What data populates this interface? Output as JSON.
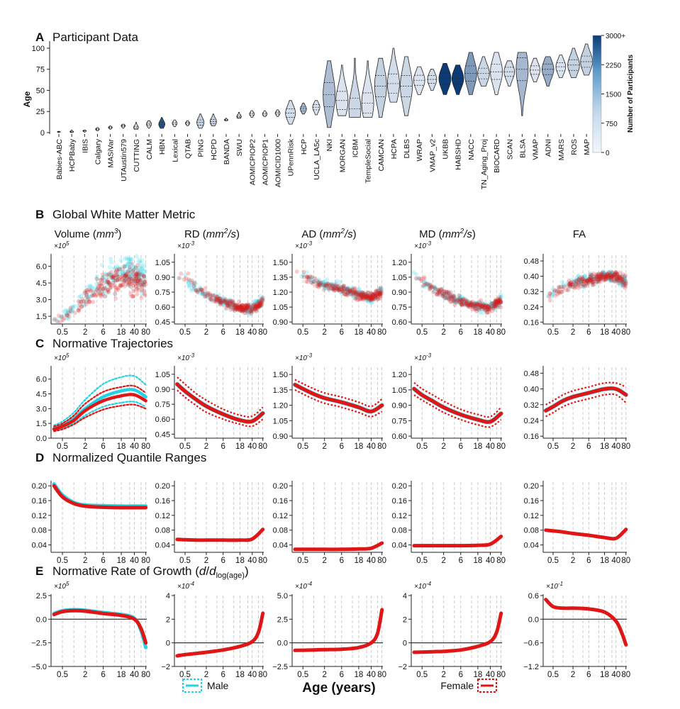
{
  "colors": {
    "male": "#22d3e6",
    "female": "#e01515",
    "axis": "#222222",
    "grid": "#bfbfbf",
    "cbar_low": "#f2f6fb",
    "cbar_high": "#0b3c78"
  },
  "panel_a": {
    "letter": "A",
    "title": "Participant Data",
    "ylabel": "Age",
    "yticks": [
      "0",
      "25",
      "50",
      "75",
      "100"
    ],
    "colorbar": {
      "label": "Number of Participants",
      "ticks": [
        "0",
        "750",
        "1500",
        "2250",
        "3000+"
      ]
    }
  },
  "panel_b": {
    "letter": "B",
    "title": "Global White Matter Metric"
  },
  "panel_c": {
    "letter": "C",
    "title": "Normative Trajectories"
  },
  "panel_d": {
    "letter": "D",
    "title": "Normalized Quantile Ranges"
  },
  "panel_e": {
    "letter": "E",
    "title_main": "Normative Rate of Growth (",
    "title_d": "d",
    "title_slash": "/",
    "title_dlog": "d",
    "title_sub": "log(age)",
    "title_end": ")"
  },
  "metrics": [
    {
      "name": "Volume",
      "unit": "mm",
      "unit_sup": "3"
    },
    {
      "name": "RD",
      "unit": "mm",
      "unit_sup": "2",
      "unit_tail": "/s"
    },
    {
      "name": "AD",
      "unit": "mm",
      "unit_sup": "2",
      "unit_tail": "/s"
    },
    {
      "name": "MD",
      "unit": "mm",
      "unit_sup": "2",
      "unit_tail": "/s"
    },
    {
      "name": "FA"
    }
  ],
  "xlabel": "Age (years)",
  "legend": {
    "male": "Male",
    "female": "Female"
  },
  "age_ticks": [
    "0.5",
    "2",
    "6",
    "18",
    "40",
    "80"
  ],
  "chart_data": [
    {
      "type": "violin",
      "title": "Participant Data",
      "ylabel": "Age",
      "ylim": [
        0,
        105
      ],
      "categories": [
        "Babies-ABC",
        "HCPBaby",
        "IBIS",
        "Calgary",
        "MASiVar",
        "UTAustin579",
        "CUTTING",
        "CALM",
        "HBN",
        "Lexical",
        "QTAB",
        "PING",
        "HCPD",
        "BANDA",
        "SWU",
        "AOMICPIOP2",
        "AOMICPIOP1",
        "AOMICID1000",
        "UPennRisk",
        "HCP",
        "UCLA_LA5c",
        "NKI",
        "MORGAN",
        "ICBM",
        "TempleSocial",
        "CAMCAN",
        "HCPA",
        "DLBS",
        "WRAP",
        "VMAP_v2",
        "UKBB",
        "HABSHD",
        "NACC",
        "TN_Aging_Proj",
        "BIOCARD",
        "SCAN",
        "BLSA",
        "VMAP",
        "ADNI",
        "MARS",
        "ROS",
        "MAP"
      ],
      "age_min": [
        0.2,
        0.2,
        0.5,
        2,
        4,
        5,
        4,
        5,
        5,
        7,
        8,
        5,
        8,
        14,
        17,
        18,
        19,
        19,
        10,
        22,
        21,
        6,
        20,
        18,
        18,
        18,
        36,
        20,
        45,
        50,
        45,
        45,
        45,
        55,
        45,
        55,
        20,
        60,
        55,
        65,
        65,
        68
      ],
      "age_median": [
        0.8,
        1,
        2,
        4,
        6,
        8,
        6,
        10,
        10,
        11,
        11,
        12,
        13,
        15,
        19,
        22,
        22,
        23,
        23,
        28,
        30,
        45,
        38,
        28,
        35,
        55,
        58,
        55,
        62,
        63,
        64,
        64,
        70,
        70,
        72,
        72,
        75,
        74,
        75,
        78,
        80,
        84
      ],
      "age_max": [
        1.5,
        3,
        3,
        6,
        8,
        10,
        12,
        14,
        18,
        15,
        14,
        22,
        22,
        17,
        24,
        26,
        26,
        27,
        38,
        35,
        38,
        85,
        80,
        88,
        85,
        88,
        100,
        90,
        78,
        75,
        82,
        80,
        95,
        90,
        95,
        85,
        95,
        88,
        90,
        92,
        100,
        105
      ],
      "participants": [
        150,
        200,
        250,
        150,
        120,
        200,
        200,
        400,
        2600,
        200,
        200,
        600,
        600,
        150,
        300,
        200,
        200,
        300,
        400,
        1000,
        300,
        900,
        300,
        500,
        300,
        600,
        400,
        500,
        300,
        400,
        3000,
        3000,
        1500,
        500,
        300,
        400,
        1000,
        300,
        1200,
        300,
        600,
        600
      ]
    },
    {
      "type": "scatter",
      "title": "Global White Matter Metric",
      "x_scale": "log(age)",
      "series_names": [
        "Male",
        "Female"
      ],
      "metrics": [
        {
          "name": "Volume",
          "scale_label": "×10^5",
          "yticks": [
            "1.5",
            "3.0",
            "4.5",
            "6.0"
          ],
          "ylim": [
            0.8,
            7.0
          ]
        },
        {
          "name": "RD",
          "scale_label": "×10^-3",
          "yticks": [
            "0.45",
            "0.60",
            "0.75",
            "0.90",
            "1.05"
          ],
          "ylim": [
            0.43,
            1.12
          ]
        },
        {
          "name": "AD",
          "scale_label": "×10^-3",
          "yticks": [
            "0.90",
            "1.05",
            "1.20",
            "1.35",
            "1.50"
          ],
          "ylim": [
            0.88,
            1.57
          ]
        },
        {
          "name": "MD",
          "scale_label": "×10^-3",
          "yticks": [
            "0.60",
            "0.75",
            "0.90",
            "1.05",
            "1.20"
          ],
          "ylim": [
            0.58,
            1.27
          ]
        },
        {
          "name": "FA",
          "scale_label": "",
          "yticks": [
            "0.16",
            "0.24",
            "0.32",
            "0.40",
            "0.48"
          ],
          "ylim": [
            0.15,
            0.51
          ]
        }
      ]
    },
    {
      "type": "line",
      "title": "Normative Trajectories",
      "x": [
        0.3,
        0.5,
        1,
        2,
        6,
        18,
        40,
        80
      ],
      "metrics": [
        {
          "name": "Volume",
          "scale_label": "×10^5",
          "yticks": [
            "0.0",
            "1.5",
            "3.0",
            "4.5",
            "6.0"
          ],
          "ylim": [
            0,
            7.2
          ],
          "series": [
            {
              "name": "Male median",
              "values": [
                1.0,
                1.3,
                2.0,
                3.0,
                4.2,
                4.8,
                4.9,
                4.2
              ]
            },
            {
              "name": "Male upper",
              "values": [
                1.3,
                1.7,
                2.6,
                3.9,
                5.5,
                6.2,
                6.3,
                5.4
              ]
            },
            {
              "name": "Male lower",
              "values": [
                0.8,
                1.0,
                1.5,
                2.3,
                3.2,
                3.6,
                3.7,
                3.2
              ]
            },
            {
              "name": "Female median",
              "values": [
                0.9,
                1.2,
                1.8,
                2.8,
                3.8,
                4.3,
                4.4,
                3.8
              ]
            },
            {
              "name": "Female upper",
              "values": [
                1.2,
                1.5,
                2.3,
                3.5,
                4.7,
                5.2,
                5.3,
                4.6
              ]
            },
            {
              "name": "Female lower",
              "values": [
                0.7,
                0.9,
                1.4,
                2.1,
                2.9,
                3.3,
                3.4,
                3.0
              ]
            }
          ]
        },
        {
          "name": "RD",
          "scale_label": "×10^-3",
          "yticks": [
            "0.45",
            "0.60",
            "0.75",
            "0.90",
            "1.05"
          ],
          "ylim": [
            0.41,
            1.12
          ],
          "series": [
            {
              "name": "Median",
              "values": [
                0.95,
                0.88,
                0.8,
                0.73,
                0.65,
                0.59,
                0.58,
                0.66
              ]
            },
            {
              "name": "Upper",
              "values": [
                1.02,
                0.95,
                0.86,
                0.79,
                0.7,
                0.64,
                0.63,
                0.72
              ]
            },
            {
              "name": "Lower",
              "values": [
                0.89,
                0.82,
                0.74,
                0.67,
                0.6,
                0.55,
                0.53,
                0.6
              ]
            }
          ]
        },
        {
          "name": "AD",
          "scale_label": "×10^-3",
          "yticks": [
            "0.90",
            "1.05",
            "1.20",
            "1.35",
            "1.50"
          ],
          "ylim": [
            0.88,
            1.57
          ],
          "series": [
            {
              "name": "Median",
              "values": [
                1.4,
                1.36,
                1.31,
                1.27,
                1.23,
                1.18,
                1.14,
                1.2
              ]
            },
            {
              "name": "Upper",
              "values": [
                1.45,
                1.41,
                1.36,
                1.32,
                1.28,
                1.23,
                1.19,
                1.26
              ]
            },
            {
              "name": "Lower",
              "values": [
                1.35,
                1.31,
                1.26,
                1.22,
                1.18,
                1.13,
                1.09,
                1.14
              ]
            }
          ]
        },
        {
          "name": "MD",
          "scale_label": "×10^-3",
          "yticks": [
            "0.60",
            "0.75",
            "0.90",
            "1.05",
            "1.20"
          ],
          "ylim": [
            0.58,
            1.27
          ],
          "series": [
            {
              "name": "Median",
              "values": [
                1.06,
                1.0,
                0.94,
                0.88,
                0.81,
                0.76,
                0.74,
                0.82
              ]
            },
            {
              "name": "Upper",
              "values": [
                1.12,
                1.06,
                1.0,
                0.94,
                0.86,
                0.81,
                0.79,
                0.88
              ]
            },
            {
              "name": "Lower",
              "values": [
                1.0,
                0.95,
                0.89,
                0.83,
                0.76,
                0.71,
                0.69,
                0.76
              ]
            }
          ]
        },
        {
          "name": "FA",
          "scale_label": "",
          "yticks": [
            "0.16",
            "0.24",
            "0.32",
            "0.40",
            "0.48"
          ],
          "ylim": [
            0.15,
            0.51
          ],
          "series": [
            {
              "name": "Median",
              "values": [
                0.29,
                0.31,
                0.34,
                0.36,
                0.38,
                0.4,
                0.4,
                0.37
              ]
            },
            {
              "name": "Upper",
              "values": [
                0.32,
                0.34,
                0.37,
                0.39,
                0.41,
                0.43,
                0.43,
                0.41
              ]
            },
            {
              "name": "Lower",
              "values": [
                0.26,
                0.28,
                0.31,
                0.33,
                0.35,
                0.37,
                0.37,
                0.33
              ]
            }
          ]
        }
      ]
    },
    {
      "type": "line",
      "title": "Normalized Quantile Ranges",
      "x": [
        0.3,
        0.5,
        1,
        2,
        6,
        18,
        40,
        80
      ],
      "metrics": [
        {
          "name": "Volume",
          "yticks": [
            "0.04",
            "0.08",
            "0.12",
            "0.16",
            "0.20"
          ],
          "ylim": [
            0.02,
            0.21
          ],
          "series": [
            {
              "name": "Male",
              "values": [
                0.205,
                0.175,
                0.155,
                0.148,
                0.146,
                0.145,
                0.145,
                0.145
              ]
            },
            {
              "name": "Female",
              "values": [
                0.2,
                0.17,
                0.152,
                0.145,
                0.142,
                0.141,
                0.141,
                0.141
              ]
            }
          ]
        },
        {
          "name": "RD",
          "yticks": [
            "0.04",
            "0.08",
            "0.12",
            "0.16",
            "0.20"
          ],
          "ylim": [
            0.02,
            0.21
          ],
          "series": [
            {
              "name": "Female",
              "values": [
                0.055,
                0.054,
                0.053,
                0.053,
                0.053,
                0.053,
                0.056,
                0.082
              ]
            }
          ]
        },
        {
          "name": "AD",
          "yticks": [
            "0.04",
            "0.08",
            "0.12",
            "0.16",
            "0.20"
          ],
          "ylim": [
            0.02,
            0.21
          ],
          "series": [
            {
              "name": "Female",
              "values": [
                0.028,
                0.028,
                0.028,
                0.028,
                0.028,
                0.029,
                0.031,
                0.045
              ]
            }
          ]
        },
        {
          "name": "MD",
          "yticks": [
            "0.04",
            "0.08",
            "0.12",
            "0.16",
            "0.20"
          ],
          "ylim": [
            0.02,
            0.21
          ],
          "series": [
            {
              "name": "Female",
              "values": [
                0.038,
                0.038,
                0.038,
                0.038,
                0.038,
                0.039,
                0.042,
                0.063
              ]
            }
          ]
        },
        {
          "name": "FA",
          "yticks": [
            "0.04",
            "0.08",
            "0.12",
            "0.16",
            "0.20"
          ],
          "ylim": [
            0.02,
            0.21
          ],
          "series": [
            {
              "name": "Female",
              "values": [
                0.08,
                0.078,
                0.075,
                0.071,
                0.066,
                0.06,
                0.058,
                0.082
              ]
            }
          ]
        }
      ]
    },
    {
      "type": "line",
      "title": "Normative Rate of Growth (d/d log(age))",
      "x": [
        0.3,
        0.5,
        1,
        2,
        6,
        18,
        40,
        60,
        80
      ],
      "metrics": [
        {
          "name": "Volume",
          "scale_label": "×10^5",
          "yticks": [
            "−5.0",
            "−2.5",
            "0.0",
            "2.5"
          ],
          "ylim": [
            -5.0,
            2.5
          ],
          "series": [
            {
              "name": "Male",
              "values": [
                0.6,
                0.9,
                1.0,
                0.95,
                0.7,
                0.5,
                0.1,
                -1.2,
                -3.0
              ]
            },
            {
              "name": "Female",
              "values": [
                0.5,
                0.8,
                0.9,
                0.85,
                0.6,
                0.4,
                0.0,
                -1.0,
                -2.5
              ]
            }
          ]
        },
        {
          "name": "RD",
          "scale_label": "×10^-4",
          "yticks": [
            "−2",
            "0",
            "2",
            "4"
          ],
          "ylim": [
            -2,
            4
          ],
          "series": [
            {
              "name": "Female",
              "values": [
                -1.1,
                -1.0,
                -0.9,
                -0.8,
                -0.6,
                -0.3,
                0.1,
                0.9,
                2.5
              ]
            }
          ]
        },
        {
          "name": "AD",
          "scale_label": "×10^-4",
          "yticks": [
            "−2.5",
            "0.0",
            "2.5",
            "5.0"
          ],
          "ylim": [
            -2.5,
            5.0
          ],
          "series": [
            {
              "name": "Female",
              "values": [
                -0.8,
                -0.78,
                -0.75,
                -0.72,
                -0.68,
                -0.5,
                0.0,
                1.0,
                3.5
              ]
            }
          ]
        },
        {
          "name": "MD",
          "scale_label": "×10^-4",
          "yticks": [
            "−2",
            "0",
            "2",
            "4"
          ],
          "ylim": [
            -2,
            4
          ],
          "series": [
            {
              "name": "Female",
              "values": [
                -0.8,
                -0.78,
                -0.75,
                -0.72,
                -0.6,
                -0.3,
                0.1,
                0.9,
                2.5
              ]
            }
          ]
        },
        {
          "name": "FA",
          "scale_label": "×10^-1",
          "yticks": [
            "−1.2",
            "−0.6",
            "0.0",
            "0.6"
          ],
          "ylim": [
            -1.2,
            0.6
          ],
          "series": [
            {
              "name": "Female",
              "values": [
                0.5,
                0.32,
                0.28,
                0.28,
                0.26,
                0.18,
                -0.05,
                -0.35,
                -0.65
              ]
            }
          ]
        }
      ]
    }
  ]
}
